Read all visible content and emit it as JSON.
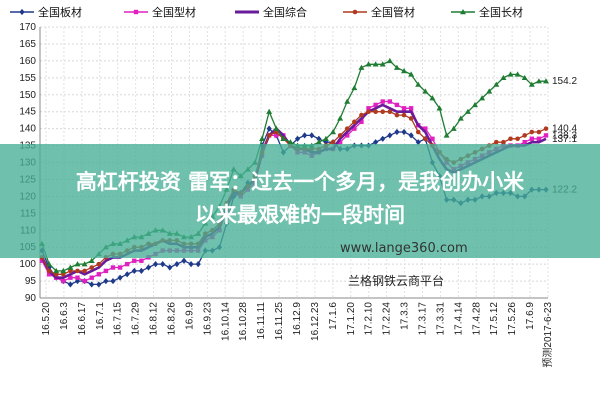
{
  "chart_data": {
    "type": "line",
    "ylim": [
      90,
      170
    ],
    "yticks": [
      90,
      95,
      100,
      105,
      110,
      115,
      120,
      125,
      130,
      135,
      140,
      145,
      150,
      155,
      160,
      165,
      170
    ],
    "grid": true,
    "legend_position": "top",
    "x_tick_labels": [
      "16.5.20",
      "16.6.3",
      "16.6.17",
      "16.7.1",
      "16.7.15",
      "16.7.29",
      "16.8.12",
      "16.8.26",
      "16.9.9",
      "16.9.23",
      "16.10.14",
      "16.10.28",
      "16.11.11",
      "16.11.25",
      "16.12.9",
      "16.12.23",
      "17.1.6",
      "17.1.20",
      "17.2.10",
      "17.2.24",
      "17.3.3",
      "17.3.17",
      "17.3.31",
      "17.4.14",
      "17.4.28",
      "17.5.12",
      "17.5.26",
      "17.6.9",
      "预测2017-6-23"
    ],
    "series": [
      {
        "name": "全国板材",
        "color": "#1f3a8a",
        "marker": "diamond",
        "end_label": "122.2",
        "values": [
          104,
          99,
          96,
          95,
          94,
          95,
          95,
          94,
          94,
          95,
          95,
          96,
          97,
          98,
          98,
          99,
          100,
          100,
          99,
          100,
          101,
          100,
          100,
          104,
          104,
          105,
          112,
          120,
          121,
          124,
          124,
          135,
          140,
          138,
          133,
          135,
          137,
          138,
          138,
          137,
          136,
          136,
          134,
          134,
          135,
          135,
          135,
          136,
          137,
          138,
          139,
          139,
          138,
          136,
          137,
          130,
          126,
          119,
          119,
          118,
          119,
          119,
          120,
          120,
          121,
          121,
          121,
          120,
          120,
          122,
          122,
          122
        ]
      },
      {
        "name": "全国型材",
        "color": "#e020c0",
        "marker": "square",
        "end_label": "138.3",
        "values": [
          101,
          97,
          96,
          95,
          96,
          96,
          95,
          96,
          97,
          98,
          99,
          99,
          100,
          101,
          101,
          102,
          103,
          104,
          104,
          104,
          104,
          104,
          104,
          107,
          108,
          110,
          116,
          121,
          120,
          122,
          124,
          132,
          138,
          138,
          138,
          135,
          133,
          133,
          132,
          133,
          134,
          134,
          136,
          138,
          140,
          142,
          146,
          147,
          148,
          148,
          147,
          146,
          146,
          141,
          140,
          137,
          133,
          130,
          128,
          129,
          130,
          131,
          132,
          133,
          134,
          135,
          135,
          135,
          136,
          137,
          137,
          138
        ]
      },
      {
        "name": "全国综合",
        "color": "#6a1b9a",
        "marker": "none",
        "end_label": "137.1",
        "values": [
          102,
          98,
          96,
          96,
          97,
          98,
          97,
          98,
          99,
          101,
          102,
          102,
          103,
          104,
          104,
          105,
          106,
          107,
          106,
          106,
          105,
          105,
          105,
          108,
          109,
          111,
          117,
          121,
          121,
          123,
          125,
          133,
          138,
          140,
          138,
          135,
          134,
          134,
          133,
          133,
          134,
          134,
          137,
          139,
          141,
          143,
          145,
          146,
          147,
          146,
          145,
          145,
          145,
          141,
          139,
          135,
          131,
          128,
          127,
          128,
          129,
          130,
          131,
          132,
          133,
          134,
          135,
          135,
          135,
          136,
          136,
          137
        ]
      },
      {
        "name": "全国管材",
        "color": "#b03a1f",
        "marker": "circle",
        "end_label": "140.4",
        "values": [
          102,
          98,
          97,
          97,
          98,
          98,
          98,
          99,
          100,
          102,
          103,
          103,
          104,
          105,
          105,
          106,
          106,
          107,
          107,
          107,
          106,
          106,
          106,
          109,
          110,
          112,
          118,
          122,
          121,
          123,
          126,
          133,
          138,
          139,
          137,
          135,
          134,
          134,
          134,
          134,
          135,
          136,
          138,
          140,
          142,
          144,
          145,
          145,
          145,
          145,
          144,
          144,
          143,
          139,
          137,
          135,
          133,
          131,
          130,
          131,
          132,
          133,
          134,
          135,
          136,
          136,
          137,
          137,
          138,
          139,
          139,
          140
        ]
      },
      {
        "name": "全国长材",
        "color": "#1e7d32",
        "marker": "triangle",
        "end_label": "154.2",
        "values": [
          106,
          100,
          98,
          98,
          99,
          100,
          100,
          101,
          103,
          105,
          106,
          106,
          107,
          108,
          108,
          109,
          110,
          110,
          109,
          109,
          108,
          108,
          109,
          112,
          114,
          117,
          122,
          128,
          126,
          128,
          130,
          137,
          145,
          140,
          137,
          136,
          135,
          135,
          135,
          136,
          137,
          139,
          143,
          148,
          152,
          158,
          159,
          159,
          159,
          160,
          158,
          157,
          156,
          153,
          151,
          149,
          146,
          138,
          140,
          143,
          145,
          147,
          149,
          151,
          153,
          155,
          156,
          156,
          155,
          153,
          154,
          154
        ]
      }
    ]
  },
  "banner": {
    "line1": "高杠杆投资 雷军：过去一个多月，是我创办小米",
    "line2": "以来最艰难的一段时间"
  },
  "watermark": {
    "url": "www.lange360.com",
    "platform": "兰格钢铁云商平台"
  }
}
